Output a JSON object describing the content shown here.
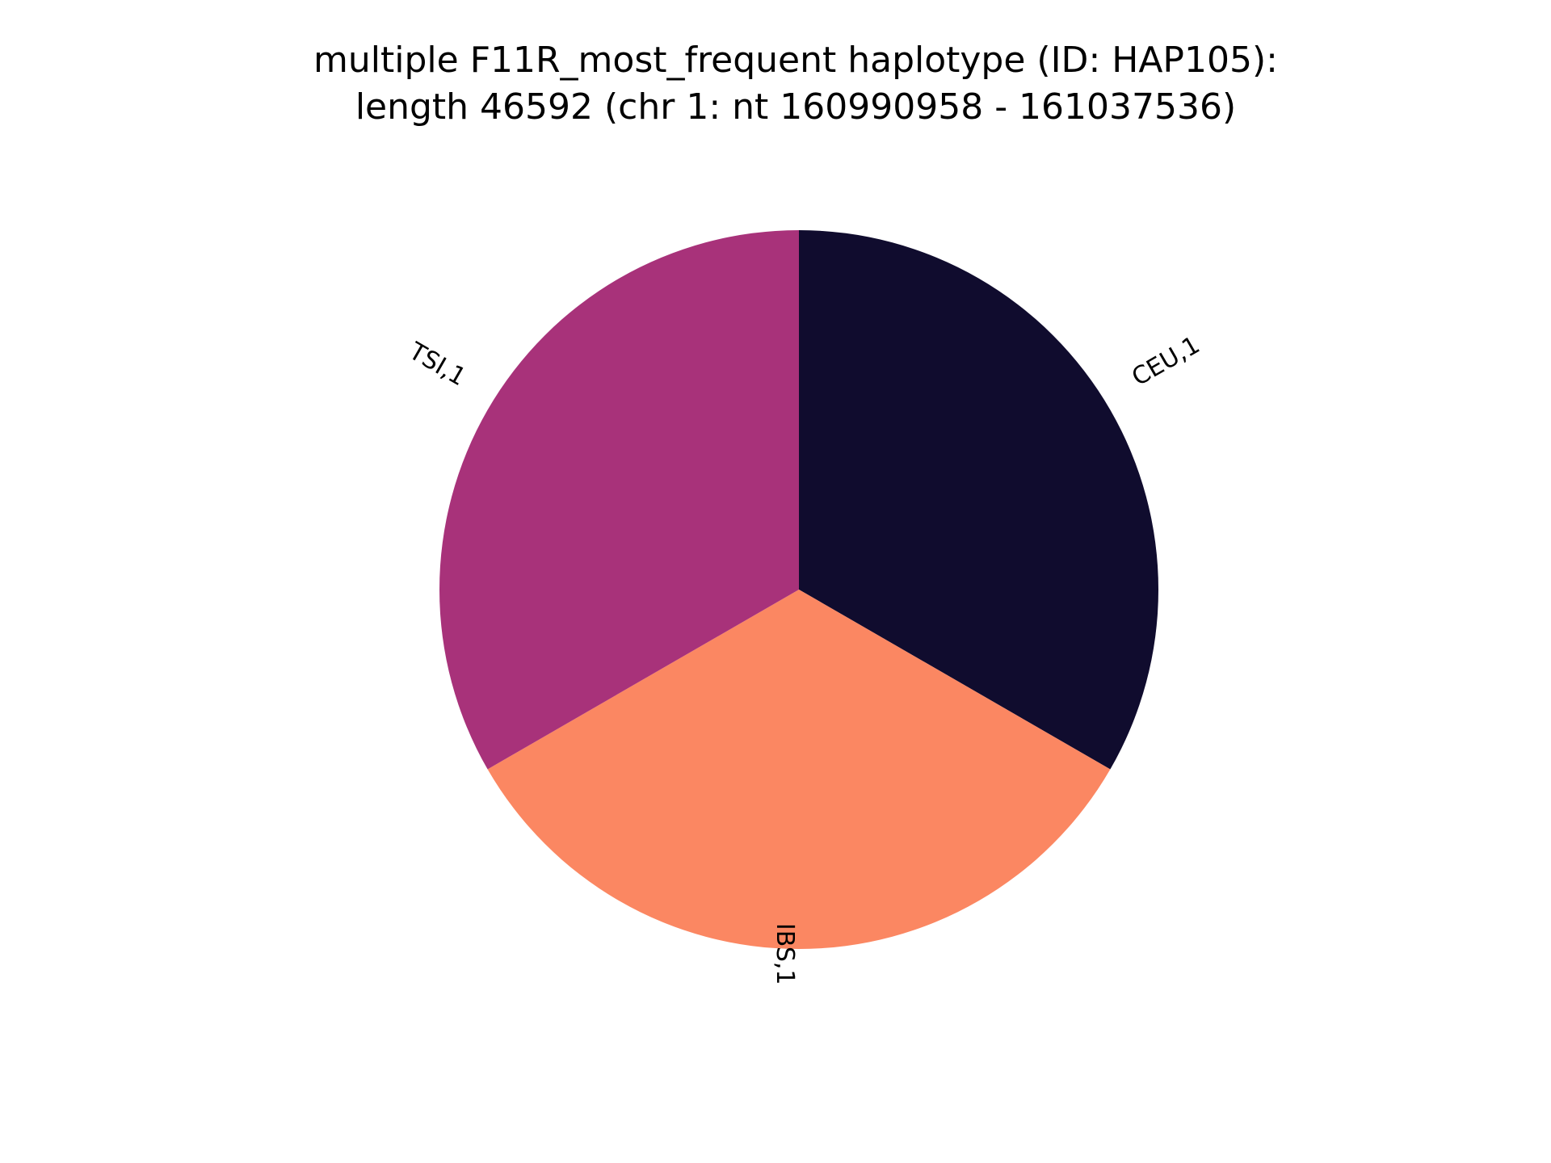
{
  "chart_data": {
    "type": "pie",
    "title": "multiple F11R_most_frequent haplotype (ID: HAP105):",
    "subtitle": "length 46592 (chr 1: nt 160990958 - 161037536)",
    "slices": [
      {
        "label": "CEU,1",
        "value": 1,
        "color": "#100c2e"
      },
      {
        "label": "IBS,1",
        "value": 1,
        "color": "#fb8762"
      },
      {
        "label": "TSI,1",
        "value": 1,
        "color": "#a8327a"
      }
    ],
    "start_angle_deg": 90,
    "direction": "clockwise",
    "legend": "none"
  }
}
